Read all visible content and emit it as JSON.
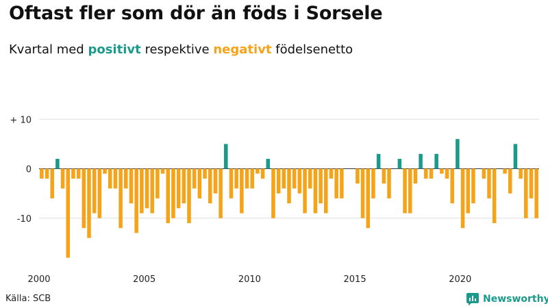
{
  "header": {
    "title": "Oftast fler som dör än föds i Sorsele",
    "subtitle_prefix": "Kvartal med",
    "subtitle_positive": "positivt",
    "subtitle_middle": "respektive",
    "subtitle_negative": "negativt",
    "subtitle_suffix": "födelsenetto"
  },
  "footer": {
    "source": "Källa: SCB",
    "brand": "Newsworthy"
  },
  "colors": {
    "positive": "#1a9a8a",
    "negative": "#f5a318",
    "grid": "#dddddd",
    "axis": "#333333"
  },
  "chart_data": {
    "type": "bar",
    "title": "Oftast fler som dör än föds i Sorsele",
    "subtitle": "Kvartal med positivt respektive negativt födelsenetto",
    "xlabel": "",
    "ylabel": "",
    "start_year": 2000,
    "periods_per_year": 4,
    "values": [
      -2,
      -2,
      -6,
      2,
      -4,
      -18,
      -2,
      -2,
      -12,
      -14,
      -9,
      -10,
      -1,
      -4,
      -4,
      -12,
      -4,
      -7,
      -13,
      -9,
      -8,
      -9,
      -6,
      -1,
      -11,
      -10,
      -8,
      -7,
      -11,
      -4,
      -6,
      -2,
      -7,
      -5,
      -10,
      5,
      -6,
      -4,
      -9,
      -4,
      -4,
      -1,
      -2,
      2,
      -10,
      -5,
      -4,
      -7,
      -4,
      -5,
      -9,
      -4,
      -9,
      -7,
      -9,
      -2,
      -6,
      -6,
      0,
      0,
      -3,
      -10,
      -12,
      -6,
      3,
      -3,
      -6,
      0,
      2,
      -9,
      -9,
      -3,
      3,
      -2,
      -2,
      3,
      -1,
      -2,
      -7,
      6,
      -12,
      -9,
      -7,
      0,
      -2,
      -6,
      -11,
      0,
      -1,
      -5,
      5,
      -2,
      -10,
      -6,
      -10
    ],
    "ylim": [
      -19,
      13
    ],
    "yticks": [
      10,
      0,
      -10
    ],
    "ytick_labels": [
      "+ 10",
      "0",
      "-10"
    ],
    "xticks": [
      2000,
      2005,
      2010,
      2015,
      2020
    ],
    "xtick_labels": [
      "2000",
      "2005",
      "2010",
      "2015",
      "2020"
    ],
    "grid": true
  }
}
